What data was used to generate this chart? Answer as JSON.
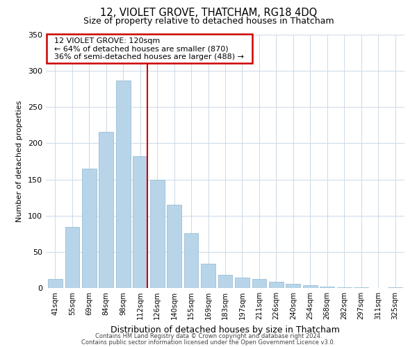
{
  "title": "12, VIOLET GROVE, THATCHAM, RG18 4DQ",
  "subtitle": "Size of property relative to detached houses in Thatcham",
  "xlabel": "Distribution of detached houses by size in Thatcham",
  "ylabel": "Number of detached properties",
  "categories": [
    "41sqm",
    "55sqm",
    "69sqm",
    "84sqm",
    "98sqm",
    "112sqm",
    "126sqm",
    "140sqm",
    "155sqm",
    "169sqm",
    "183sqm",
    "197sqm",
    "211sqm",
    "226sqm",
    "240sqm",
    "254sqm",
    "268sqm",
    "282sqm",
    "297sqm",
    "311sqm",
    "325sqm"
  ],
  "values": [
    12,
    84,
    165,
    216,
    287,
    182,
    150,
    115,
    76,
    34,
    18,
    14,
    12,
    9,
    6,
    4,
    2,
    1,
    1,
    0,
    1
  ],
  "bar_color": "#b8d4e8",
  "bar_edge_color": "#9abfd6",
  "vline_color": "#cc0000",
  "annotation_title": "12 VIOLET GROVE: 120sqm",
  "annotation_line1": "← 64% of detached houses are smaller (870)",
  "annotation_line2": "36% of semi-detached houses are larger (488) →",
  "annotation_box_color": "#ffffff",
  "annotation_box_edge": "#cc0000",
  "ylim": [
    0,
    350
  ],
  "yticks": [
    0,
    50,
    100,
    150,
    200,
    250,
    300,
    350
  ],
  "footer1": "Contains HM Land Registry data © Crown copyright and database right 2024.",
  "footer2": "Contains public sector information licensed under the Open Government Licence v3.0.",
  "bg_color": "#ffffff",
  "grid_color": "#ccd9e5"
}
